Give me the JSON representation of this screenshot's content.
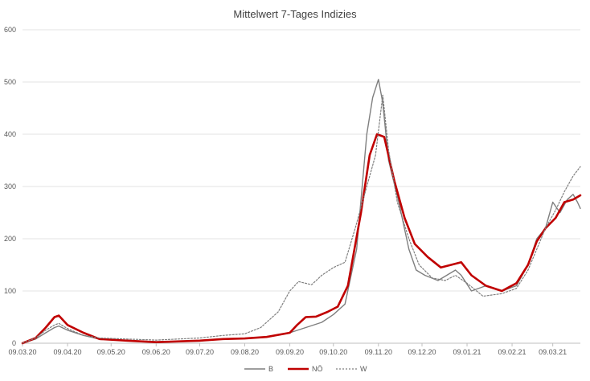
{
  "chart_data": {
    "type": "line",
    "title": "Mittelwert 7-Tages Indizies",
    "xlabel": "",
    "ylabel": "",
    "ylim": [
      0,
      600
    ],
    "yticks": [
      0,
      100,
      200,
      300,
      400,
      500,
      600
    ],
    "x_domain": [
      "09.03.20",
      "28.03.21"
    ],
    "x_ticks": [
      "09.03.20",
      "09.04.20",
      "09.05.20",
      "09.06.20",
      "09.07.20",
      "09.08.20",
      "09.09.20",
      "09.10.20",
      "09.11.20",
      "09.12.20",
      "09.01.21",
      "09.02.21",
      "09.03.21"
    ],
    "grid": true,
    "legend_position": "bottom",
    "series": [
      {
        "name": "B",
        "color": "#7f7f7f",
        "style": "solid",
        "points": [
          [
            "09.03.20",
            0
          ],
          [
            "18.03.20",
            8
          ],
          [
            "25.03.20",
            20
          ],
          [
            "31.03.20",
            30
          ],
          [
            "03.04.20",
            33
          ],
          [
            "09.04.20",
            25
          ],
          [
            "20.04.20",
            15
          ],
          [
            "01.05.20",
            8
          ],
          [
            "20.05.20",
            5
          ],
          [
            "09.06.20",
            3
          ],
          [
            "09.07.20",
            4
          ],
          [
            "25.07.20",
            8
          ],
          [
            "09.08.20",
            9
          ],
          [
            "24.08.20",
            12
          ],
          [
            "09.09.20",
            20
          ],
          [
            "20.09.20",
            30
          ],
          [
            "01.10.20",
            40
          ],
          [
            "09.10.20",
            55
          ],
          [
            "17.10.20",
            75
          ],
          [
            "25.10.20",
            180
          ],
          [
            "01.11.20",
            400
          ],
          [
            "05.11.20",
            470
          ],
          [
            "09.11.20",
            505
          ],
          [
            "12.11.20",
            460
          ],
          [
            "16.11.20",
            350
          ],
          [
            "23.11.20",
            270
          ],
          [
            "30.11.20",
            180
          ],
          [
            "05.12.20",
            140
          ],
          [
            "11.12.20",
            130
          ],
          [
            "20.12.20",
            120
          ],
          [
            "01.01.21",
            140
          ],
          [
            "05.01.21",
            130
          ],
          [
            "12.01.21",
            100
          ],
          [
            "22.01.21",
            110
          ],
          [
            "02.02.21",
            100
          ],
          [
            "12.02.21",
            110
          ],
          [
            "20.02.21",
            150
          ],
          [
            "26.02.21",
            200
          ],
          [
            "04.03.21",
            220
          ],
          [
            "09.03.21",
            270
          ],
          [
            "14.03.21",
            250
          ],
          [
            "19.03.21",
            275
          ],
          [
            "23.03.21",
            285
          ],
          [
            "26.03.21",
            270
          ],
          [
            "28.03.21",
            258
          ]
        ]
      },
      {
        "name": "NÖ",
        "color": "#c00000",
        "style": "solid-thick",
        "points": [
          [
            "09.03.20",
            0
          ],
          [
            "18.03.20",
            10
          ],
          [
            "25.03.20",
            30
          ],
          [
            "31.03.20",
            50
          ],
          [
            "03.04.20",
            53
          ],
          [
            "09.04.20",
            35
          ],
          [
            "20.04.20",
            20
          ],
          [
            "01.05.20",
            8
          ],
          [
            "20.05.20",
            5
          ],
          [
            "09.06.20",
            2
          ],
          [
            "09.07.20",
            5
          ],
          [
            "25.07.20",
            8
          ],
          [
            "09.08.20",
            9
          ],
          [
            "24.08.20",
            12
          ],
          [
            "09.09.20",
            20
          ],
          [
            "14.09.20",
            35
          ],
          [
            "20.09.20",
            50
          ],
          [
            "27.09.20",
            51
          ],
          [
            "05.10.20",
            60
          ],
          [
            "12.10.20",
            70
          ],
          [
            "19.10.20",
            110
          ],
          [
            "28.10.20",
            250
          ],
          [
            "03.11.20",
            360
          ],
          [
            "08.11.20",
            400
          ],
          [
            "13.11.20",
            395
          ],
          [
            "20.11.20",
            310
          ],
          [
            "27.11.20",
            240
          ],
          [
            "04.12.20",
            190
          ],
          [
            "13.12.20",
            165
          ],
          [
            "22.12.20",
            145
          ],
          [
            "29.12.20",
            150
          ],
          [
            "05.01.21",
            155
          ],
          [
            "12.01.21",
            130
          ],
          [
            "22.01.21",
            110
          ],
          [
            "02.02.21",
            100
          ],
          [
            "12.02.21",
            115
          ],
          [
            "20.02.21",
            150
          ],
          [
            "26.02.21",
            195
          ],
          [
            "04.03.21",
            220
          ],
          [
            "11.03.21",
            240
          ],
          [
            "17.03.21",
            270
          ],
          [
            "23.03.21",
            275
          ],
          [
            "28.03.21",
            283
          ]
        ]
      },
      {
        "name": "W",
        "color": "#7f7f7f",
        "style": "dotted",
        "points": [
          [
            "09.03.20",
            0
          ],
          [
            "18.03.20",
            10
          ],
          [
            "25.03.20",
            25
          ],
          [
            "31.03.20",
            35
          ],
          [
            "03.04.20",
            38
          ],
          [
            "09.04.20",
            28
          ],
          [
            "20.04.20",
            15
          ],
          [
            "01.05.20",
            10
          ],
          [
            "20.05.20",
            8
          ],
          [
            "09.06.20",
            6
          ],
          [
            "09.07.20",
            10
          ],
          [
            "25.07.20",
            15
          ],
          [
            "09.08.20",
            18
          ],
          [
            "20.08.20",
            30
          ],
          [
            "01.09.20",
            60
          ],
          [
            "09.09.20",
            100
          ],
          [
            "15.09.20",
            118
          ],
          [
            "24.09.20",
            112
          ],
          [
            "01.10.20",
            130
          ],
          [
            "09.10.20",
            145
          ],
          [
            "17.10.20",
            155
          ],
          [
            "24.10.20",
            220
          ],
          [
            "01.11.20",
            300
          ],
          [
            "07.11.20",
            360
          ],
          [
            "12.11.20",
            475
          ],
          [
            "16.11.20",
            370
          ],
          [
            "22.11.20",
            270
          ],
          [
            "30.11.20",
            200
          ],
          [
            "07.12.20",
            150
          ],
          [
            "16.12.20",
            125
          ],
          [
            "25.12.20",
            120
          ],
          [
            "01.01.21",
            130
          ],
          [
            "09.01.21",
            115
          ],
          [
            "20.01.21",
            90
          ],
          [
            "02.02.21",
            95
          ],
          [
            "12.02.21",
            105
          ],
          [
            "20.02.21",
            140
          ],
          [
            "26.02.21",
            180
          ],
          [
            "04.03.21",
            220
          ],
          [
            "11.03.21",
            255
          ],
          [
            "17.03.21",
            290
          ],
          [
            "23.03.21",
            320
          ],
          [
            "28.03.21",
            338
          ]
        ]
      }
    ]
  }
}
